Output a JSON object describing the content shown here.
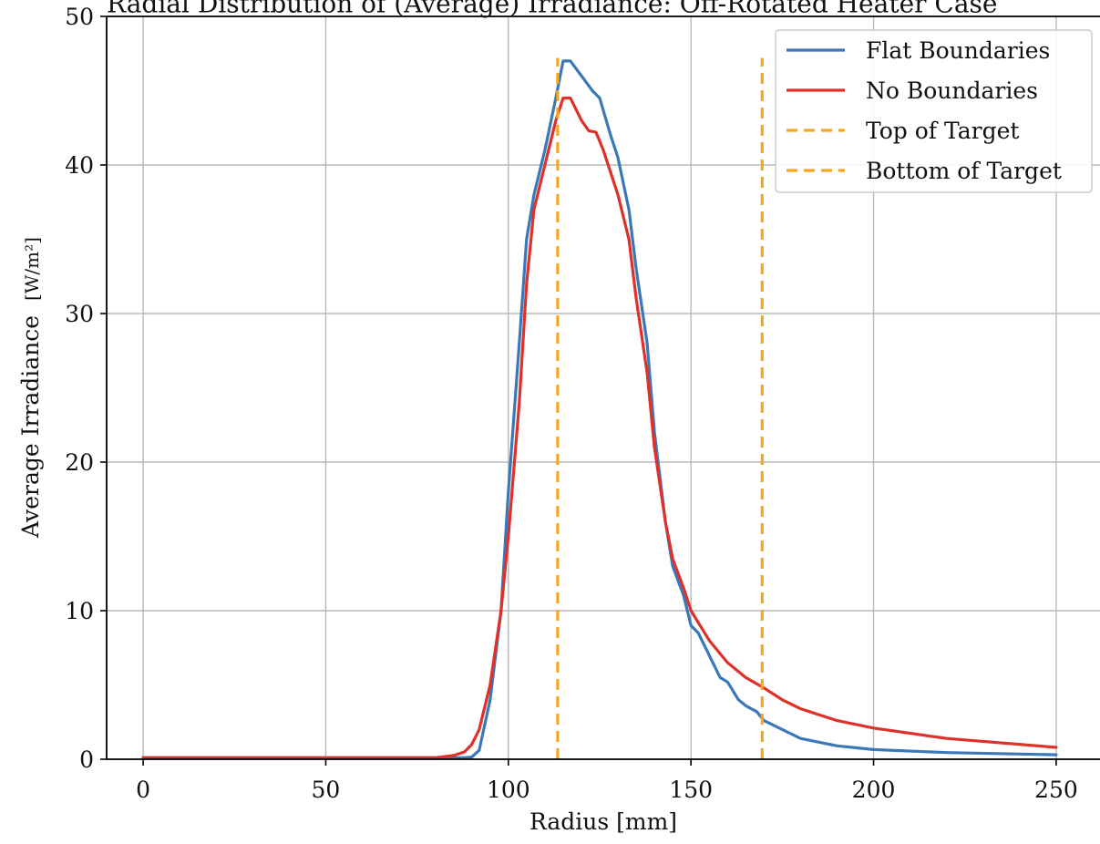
{
  "chart_data": {
    "type": "line",
    "title": "Radial Distribution of (Average) Irradiance: Off-Rotated Heater Case",
    "xlabel": "Radius [mm]",
    "ylabel": "Average Irradiance",
    "ylabel_unit": "[W/m²]",
    "xlim": [
      -10,
      262
    ],
    "ylim": [
      0,
      50
    ],
    "xticks": [
      0,
      50,
      100,
      150,
      200,
      250
    ],
    "yticks": [
      0,
      10,
      20,
      30,
      40,
      50
    ],
    "grid": true,
    "legend_position": "top-right",
    "colors": {
      "flat": "#3a78b8",
      "none": "#e0302a",
      "target": "#f5a623"
    },
    "series": [
      {
        "name": "Flat Boundaries",
        "color": "#3a78b8",
        "style": "solid",
        "x": [
          0,
          80,
          88,
          90,
          92,
          95,
          98,
          100,
          103,
          105,
          107,
          110,
          113,
          115,
          117,
          120,
          123,
          125,
          128,
          130,
          133,
          135,
          138,
          140,
          143,
          145,
          148,
          150,
          152,
          155,
          158,
          160,
          163,
          165,
          168,
          170,
          175,
          180,
          190,
          200,
          220,
          250
        ],
        "y": [
          0.1,
          0.1,
          0.1,
          0.15,
          0.6,
          4,
          10,
          18,
          28,
          35,
          38,
          41,
          44.5,
          47,
          47,
          46,
          45,
          44.5,
          42,
          40.5,
          37,
          33,
          28,
          22,
          16,
          13,
          11,
          9,
          8.5,
          7,
          5.5,
          5.2,
          4,
          3.6,
          3.2,
          2.6,
          2.0,
          1.4,
          0.9,
          0.65,
          0.45,
          0.3
        ]
      },
      {
        "name": "No Boundaries",
        "color": "#e0302a",
        "style": "solid",
        "x": [
          0,
          80,
          85,
          88,
          90,
          92,
          95,
          98,
          100,
          103,
          105,
          107,
          110,
          113,
          115,
          117,
          120,
          122,
          124,
          126,
          128,
          130,
          133,
          135,
          138,
          140,
          143,
          145,
          148,
          150,
          155,
          160,
          165,
          170,
          175,
          180,
          190,
          200,
          220,
          250
        ],
        "y": [
          0.1,
          0.1,
          0.25,
          0.5,
          1,
          2,
          5,
          10,
          15,
          24,
          32,
          37,
          40,
          43,
          44.5,
          44.5,
          43,
          42.3,
          42.2,
          41,
          39.5,
          38,
          35,
          31,
          26,
          21,
          16,
          13.5,
          11.5,
          10,
          8,
          6.5,
          5.5,
          4.8,
          4,
          3.4,
          2.6,
          2.1,
          1.4,
          0.8
        ]
      },
      {
        "name": "Top of Target",
        "color": "#f5a623",
        "style": "dashed",
        "x": [
          113.5,
          113.5
        ],
        "y": [
          0,
          47.2
        ]
      },
      {
        "name": "Bottom of Target",
        "color": "#f5a623",
        "style": "dashed",
        "x": [
          169.5,
          169.5
        ],
        "y": [
          0,
          47.2
        ]
      }
    ]
  }
}
